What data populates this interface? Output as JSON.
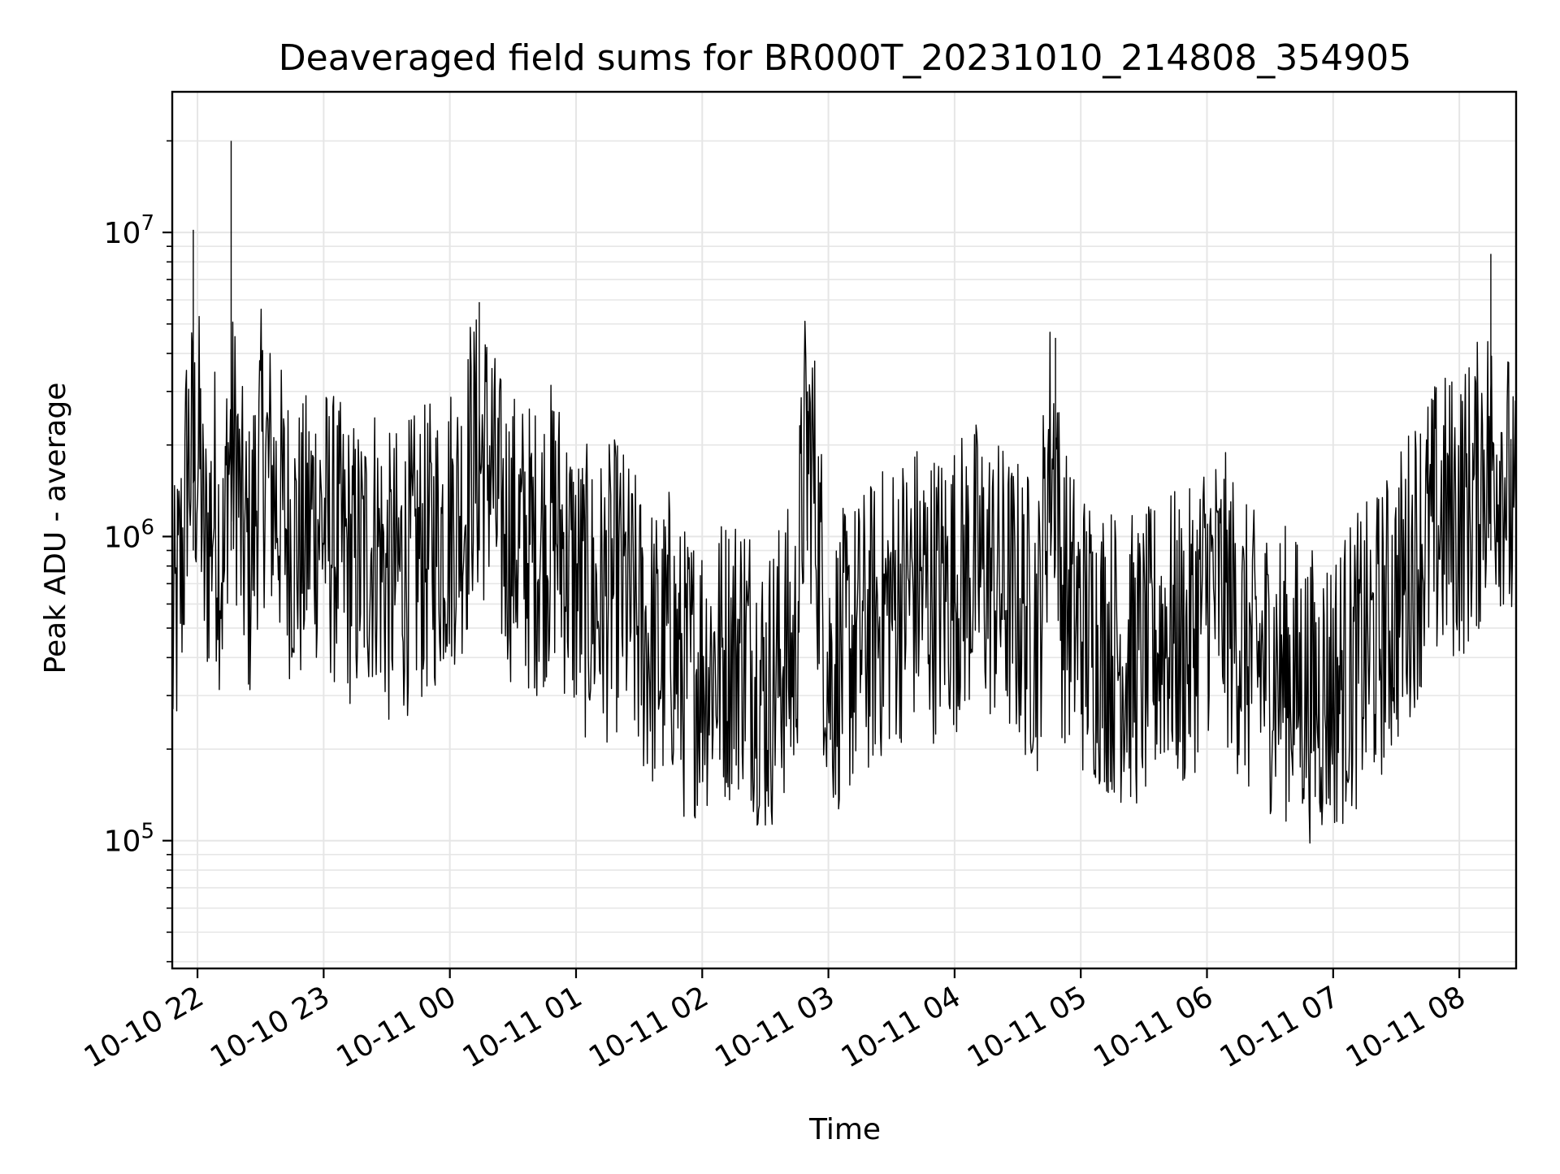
{
  "chart_data": {
    "type": "line",
    "title": "Deaveraged field sums for BR000T_20231010_214808_354905",
    "xlabel": "Time",
    "ylabel": "Peak ADU - average",
    "yscale": "log",
    "ylim": [
      38000,
      29000000
    ],
    "xlim": [
      "2023-10-10 21:48",
      "2023-10-11 08:27"
    ],
    "grid": true,
    "x_ticks": [
      {
        "value": "2023-10-10 22:00",
        "label": "10-10 22"
      },
      {
        "value": "2023-10-10 23:00",
        "label": "10-10 23"
      },
      {
        "value": "2023-10-11 00:00",
        "label": "10-11 00"
      },
      {
        "value": "2023-10-11 01:00",
        "label": "10-11 01"
      },
      {
        "value": "2023-10-11 02:00",
        "label": "10-11 02"
      },
      {
        "value": "2023-10-11 03:00",
        "label": "10-11 03"
      },
      {
        "value": "2023-10-11 04:00",
        "label": "10-11 04"
      },
      {
        "value": "2023-10-11 05:00",
        "label": "10-11 05"
      },
      {
        "value": "2023-10-11 06:00",
        "label": "10-11 06"
      },
      {
        "value": "2023-10-11 07:00",
        "label": "10-11 07"
      },
      {
        "value": "2023-10-11 08:00",
        "label": "10-11 08"
      }
    ],
    "y_ticks": [
      {
        "value": 100000,
        "base": "10",
        "exp": "5"
      },
      {
        "value": 1000000,
        "base": "10",
        "exp": "6"
      },
      {
        "value": 10000000,
        "base": "10",
        "exp": "7"
      }
    ],
    "series": [
      {
        "color": "#000000",
        "x": [
          "2023-10-10 21:48",
          "2023-10-10 21:54",
          "2023-10-10 21:58",
          "2023-10-10 22:03",
          "2023-10-10 22:08",
          "2023-10-10 22:13",
          "2023-10-10 22:16",
          "2023-10-10 22:20",
          "2023-10-10 22:25",
          "2023-10-10 22:30",
          "2023-10-10 22:35",
          "2023-10-10 22:40",
          "2023-10-10 22:45",
          "2023-10-10 22:50",
          "2023-10-10 22:55",
          "2023-10-10 23:00",
          "2023-10-10 23:08",
          "2023-10-10 23:15",
          "2023-10-10 23:22",
          "2023-10-10 23:25",
          "2023-10-10 23:30",
          "2023-10-10 23:40",
          "2023-10-10 23:50",
          "2023-10-11 00:00",
          "2023-10-11 00:08",
          "2023-10-11 00:14",
          "2023-10-11 00:22",
          "2023-10-11 00:30",
          "2023-10-11 00:40",
          "2023-10-11 00:45",
          "2023-10-11 00:50",
          "2023-10-11 01:00",
          "2023-10-11 01:10",
          "2023-10-11 01:20",
          "2023-10-11 01:30",
          "2023-10-11 01:40",
          "2023-10-11 01:45",
          "2023-10-11 01:50",
          "2023-10-11 02:00",
          "2023-10-11 02:10",
          "2023-10-11 02:20",
          "2023-10-11 02:30",
          "2023-10-11 02:40",
          "2023-10-11 02:44",
          "2023-10-11 02:50",
          "2023-10-11 03:00",
          "2023-10-11 03:07",
          "2023-10-11 03:10",
          "2023-10-11 03:20",
          "2023-10-11 03:30",
          "2023-10-11 03:40",
          "2023-10-11 03:50",
          "2023-10-11 04:00",
          "2023-10-11 04:10",
          "2023-10-11 04:20",
          "2023-10-11 04:30",
          "2023-10-11 04:40",
          "2023-10-11 04:48",
          "2023-10-11 04:50",
          "2023-10-11 05:00",
          "2023-10-11 05:10",
          "2023-10-11 05:20",
          "2023-10-11 05:30",
          "2023-10-11 05:40",
          "2023-10-11 05:50",
          "2023-10-11 06:00",
          "2023-10-11 06:10",
          "2023-10-11 06:20",
          "2023-10-11 06:30",
          "2023-10-11 06:40",
          "2023-10-11 06:50",
          "2023-10-11 07:00",
          "2023-10-11 07:10",
          "2023-10-11 07:20",
          "2023-10-11 07:30",
          "2023-10-11 07:40",
          "2023-10-11 07:50",
          "2023-10-11 08:00",
          "2023-10-11 08:05",
          "2023-10-11 08:10",
          "2023-10-11 08:15",
          "2023-10-11 08:20",
          "2023-10-11 08:27"
        ],
        "y": [
          400000,
          1050000,
          10200000,
          800000,
          1300000,
          700000,
          20000000,
          1100000,
          800000,
          2000000,
          1500000,
          1200000,
          1000000,
          900000,
          1200000,
          1100000,
          900000,
          800000,
          900000,
          1000000,
          700000,
          800000,
          900000,
          1100000,
          1300000,
          5900000,
          1200000,
          1000000,
          900000,
          1000000,
          1100000,
          700000,
          600000,
          700000,
          500000,
          400000,
          500000,
          350000,
          380000,
          400000,
          450000,
          300000,
          420000,
          380000,
          3000000,
          350000,
          400000,
          420000,
          500000,
          600000,
          700000,
          650000,
          700000,
          800000,
          700000,
          600000,
          500000,
          4500000,
          700000,
          500000,
          450000,
          400000,
          380000,
          500000,
          420000,
          700000,
          600000,
          400000,
          380000,
          350000,
          300000,
          320000,
          380000,
          450000,
          600000,
          900000,
          1100000,
          1200000,
          1300000,
          1500000,
          8500000,
          2000000,
          900000
        ]
      }
    ]
  }
}
